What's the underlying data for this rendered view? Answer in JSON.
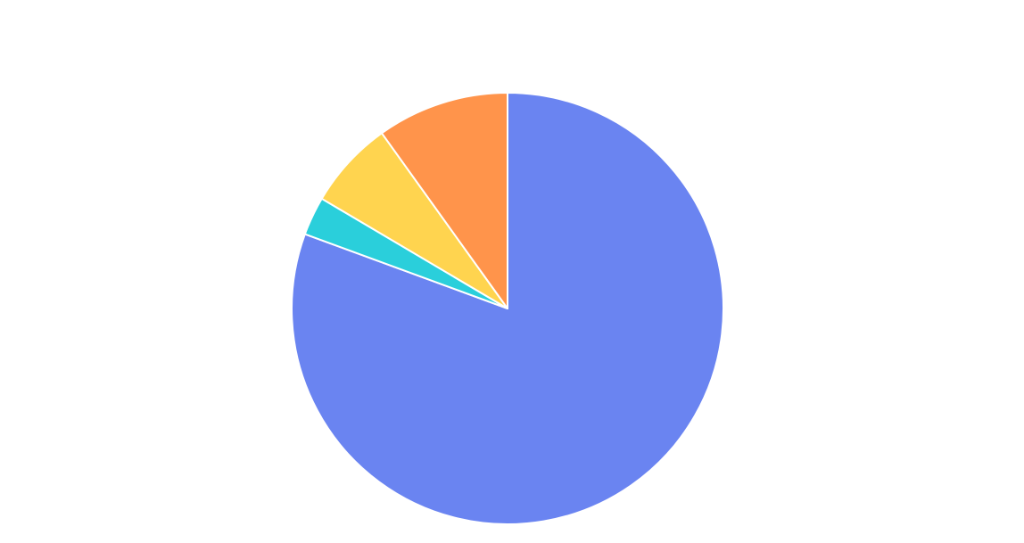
{
  "chart_data": {
    "type": "pie",
    "start_angle_deg": 0,
    "direction": "clockwise",
    "slices": [
      {
        "value": 80.6,
        "color": "#6A84F1"
      },
      {
        "value": 2.9,
        "color": "#2ACFDB"
      },
      {
        "value": 6.6,
        "color": "#FFD44F"
      },
      {
        "value": 9.9,
        "color": "#FF944B"
      }
    ],
    "legend": "none",
    "labels_shown": false
  }
}
